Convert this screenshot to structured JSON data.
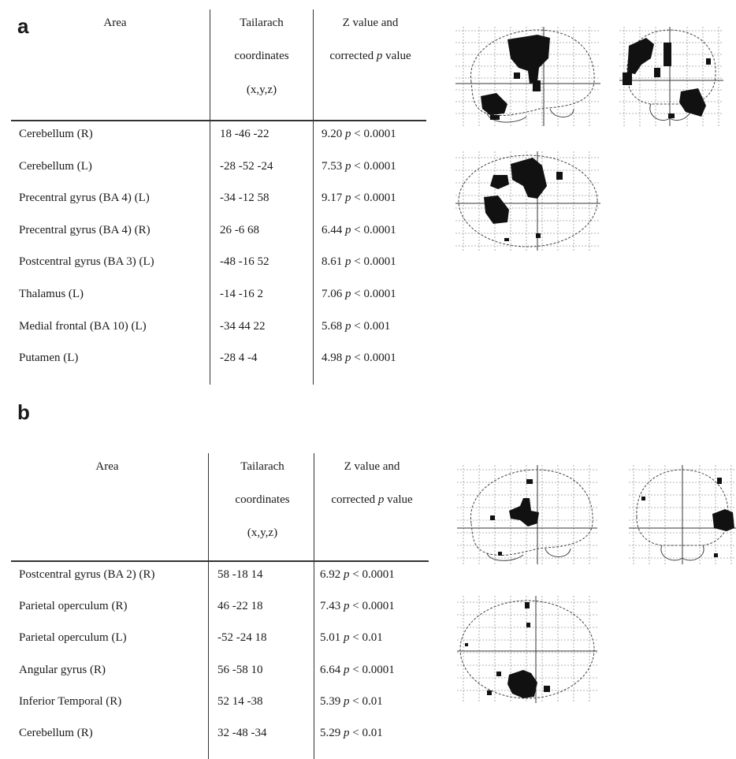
{
  "panel_a": {
    "label": "a",
    "headers": {
      "area": "Area",
      "coords": [
        "Tailarach",
        "coordinates",
        "(x,y,z)"
      ],
      "zvalue": [
        "Z value and",
        "corrected",
        "p",
        "value"
      ]
    },
    "rows": [
      {
        "area": "Cerebellum (R)",
        "coords": "18 -46 -22",
        "z": "9.20",
        "p_letter": "p",
        "p_cmp": "< 0.0001"
      },
      {
        "area": "Cerebellum (L)",
        "coords": "-28 -52 -24",
        "z": "7.53",
        "p_letter": "p",
        "p_cmp": "< 0.0001"
      },
      {
        "area": "Precentral gyrus (BA 4) (L)",
        "coords": "-34 -12 58",
        "z": "9.17",
        "p_letter": "p",
        "p_cmp": "< 0.0001"
      },
      {
        "area": "Precentral gyrus (BA 4) (R)",
        "coords": "26 -6 68",
        "z": "6.44",
        "p_letter": "p",
        "p_cmp": "< 0.0001"
      },
      {
        "area": "Postcentral gyrus (BA 3) (L)",
        "coords": "-48 -16 52",
        "z": "8.61",
        "p_letter": "p",
        "p_cmp": "< 0.0001"
      },
      {
        "area": "Thalamus (L)",
        "coords": "-14 -16 2",
        "z": "7.06",
        "p_letter": "p",
        "p_cmp": "< 0.0001"
      },
      {
        "area": "Medial frontal (BA 10) (L)",
        "coords": "-34 44 22",
        "z": "5.68",
        "p_letter": "p",
        "p_cmp": "< 0.001"
      },
      {
        "area": "Putamen (L)",
        "coords": "-28 4 -4",
        "z": "4.98",
        "p_letter": "p",
        "p_cmp": "< 0.0001"
      }
    ]
  },
  "panel_b": {
    "label": "b",
    "headers": {
      "area": "Area",
      "coords": [
        "Tailarach",
        "coordinates",
        "(x,y,z)"
      ],
      "zvalue": [
        "Z value and",
        "corrected",
        "p",
        "value"
      ]
    },
    "rows": [
      {
        "area": "Postcentral gyrus (BA 2) (R)",
        "coords": "58 -18 14",
        "z": "6.92",
        "p_letter": "p",
        "p_cmp": "< 0.0001"
      },
      {
        "area": "Parietal operculum (R)",
        "coords": "46 -22 18",
        "z": "7.43",
        "p_letter": "p",
        "p_cmp": "< 0.0001"
      },
      {
        "area": "Parietal operculum (L)",
        "coords": "-52 -24 18",
        "z": "5.01",
        "p_letter": "p",
        "p_cmp": "< 0.01"
      },
      {
        "area": "Angular gyrus (R)",
        "coords": "56 -58 10",
        "z": "6.64",
        "p_letter": "p",
        "p_cmp": "< 0.0001"
      },
      {
        "area": "Inferior Temporal (R)",
        "coords": "52 14 -38",
        "z": "5.39",
        "p_letter": "p",
        "p_cmp": "< 0.01"
      },
      {
        "area": "Cerebellum (R)",
        "coords": "32 -48 -34",
        "z": "5.29",
        "p_letter": "p",
        "p_cmp": "< 0.01"
      }
    ]
  },
  "colors": {
    "ink": "#1a1a1a",
    "activation": "#111111",
    "grid": "#9a9a9a"
  }
}
